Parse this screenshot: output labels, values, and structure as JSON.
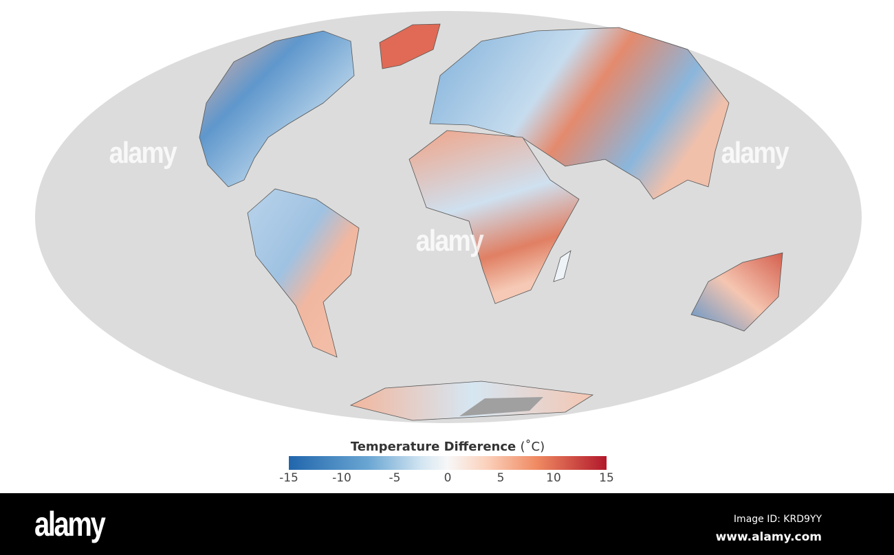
{
  "map": {
    "projection": "mollweide",
    "ocean_color": "#dcdcdc",
    "no_data_color": "#a0a0a0"
  },
  "legend": {
    "title": "Temperature Difference",
    "unit": "(˚C)",
    "range": [
      -15,
      15
    ],
    "ticks": [
      "-15",
      "-10",
      "-5",
      "0",
      "5",
      "10",
      "15"
    ],
    "colors": {
      "min": "#2166ac",
      "mid": "#f7f7f7",
      "max": "#b2182b"
    }
  },
  "watermark": {
    "text": "alamy"
  },
  "footer": {
    "logo": "alamy",
    "image_id": "Image ID: KRD9YY",
    "site": "www.alamy.com"
  }
}
